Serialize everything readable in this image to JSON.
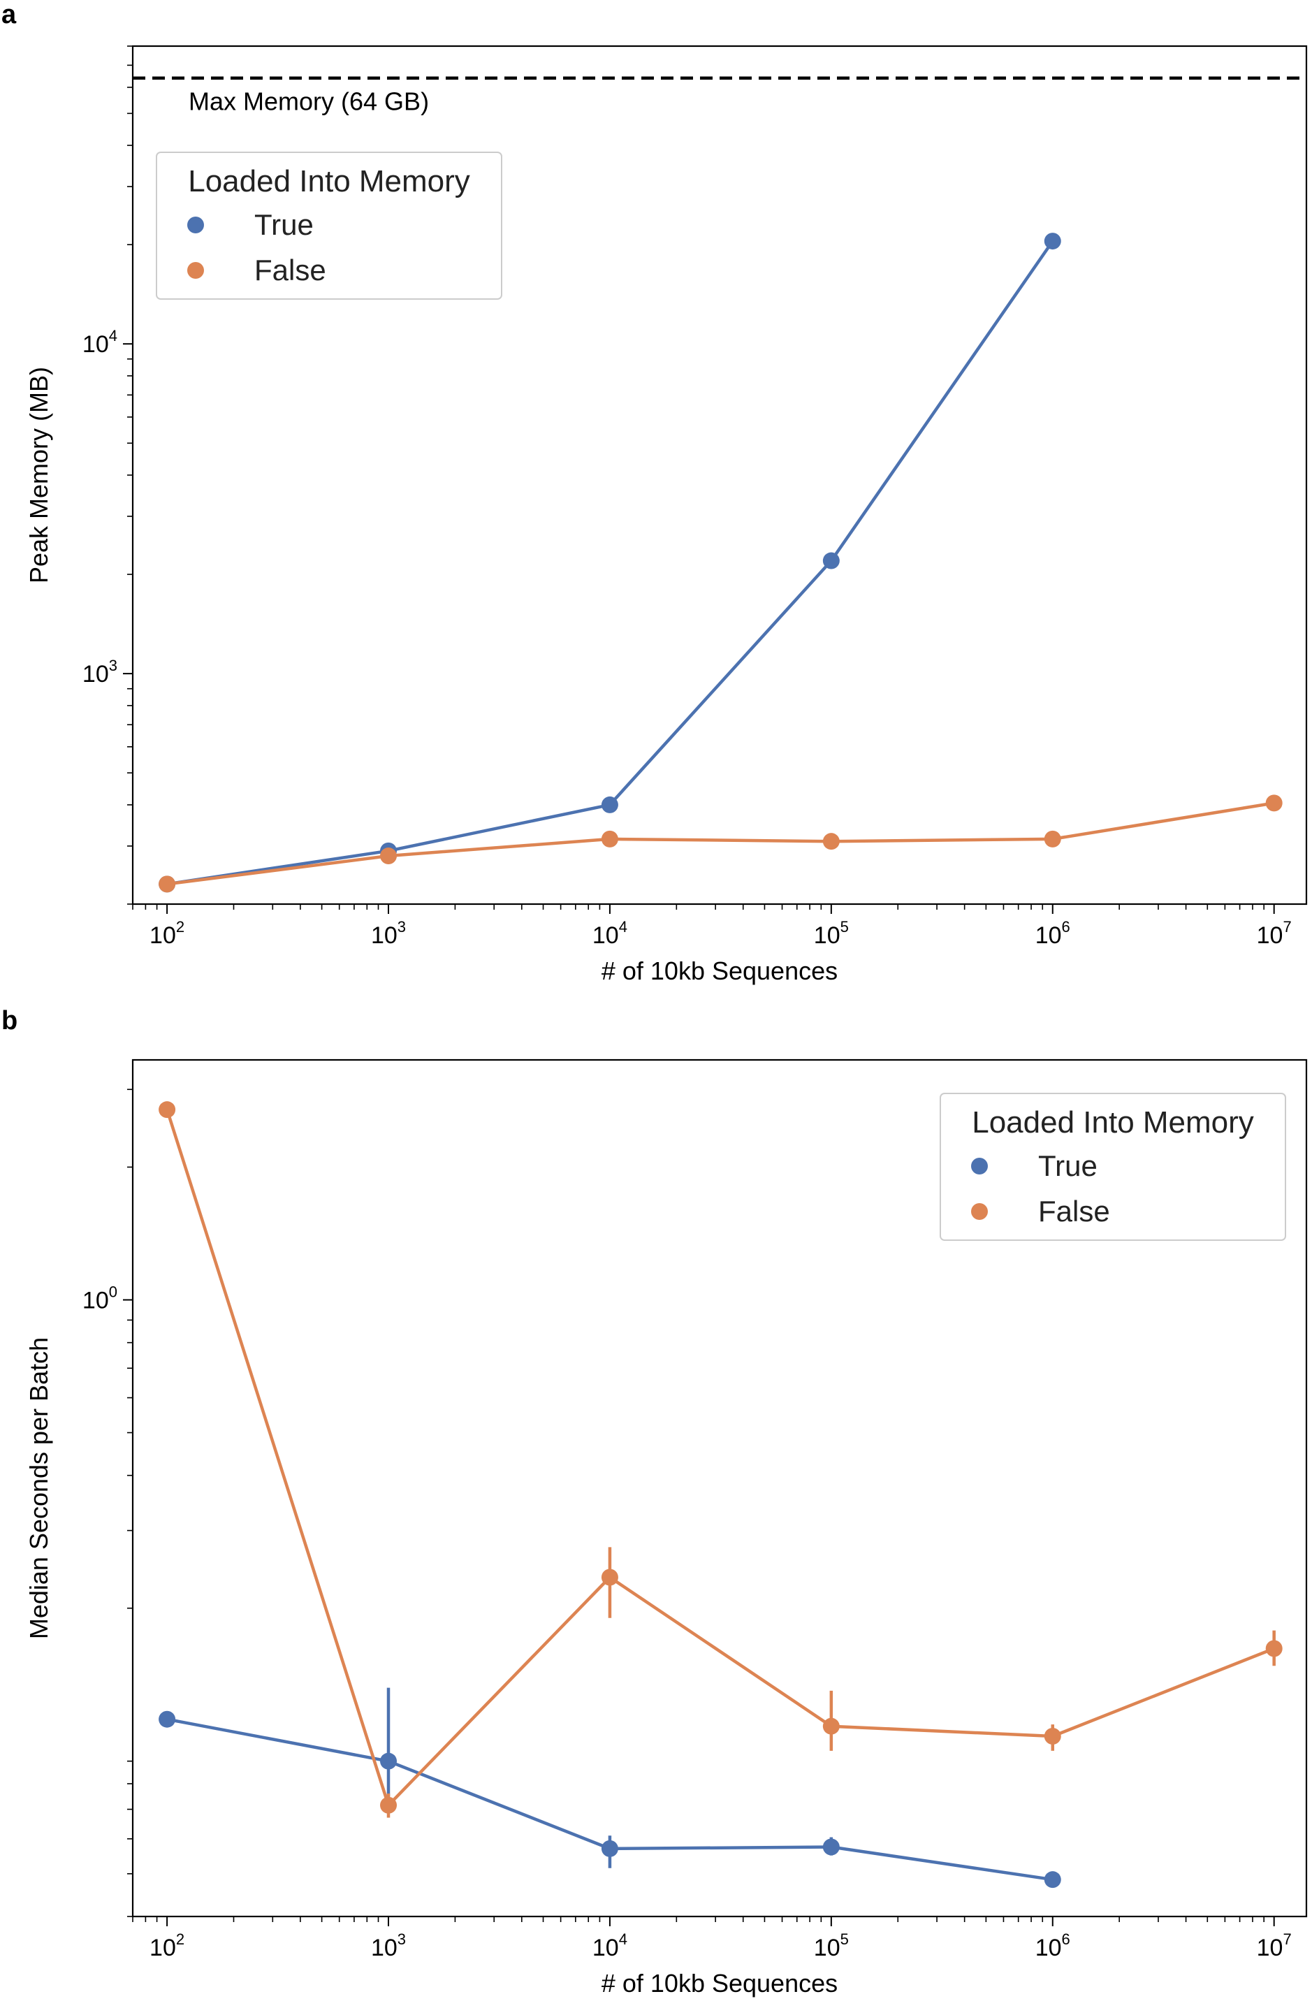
{
  "panels": {
    "a": "a",
    "b": "b"
  },
  "chart_data": [
    {
      "type": "line",
      "panel": "a",
      "xlabel": "# of 10kb Sequences",
      "ylabel": "Peak Memory (MB)",
      "xscale": "log",
      "yscale": "log",
      "xlim": [
        70,
        14000000
      ],
      "ylim": [
        200,
        80000
      ],
      "x_ticks": [
        100,
        1000,
        10000,
        100000,
        1000000,
        10000000
      ],
      "x_tick_labels": [
        [
          "10",
          "2"
        ],
        [
          "10",
          "3"
        ],
        [
          "10",
          "4"
        ],
        [
          "10",
          "5"
        ],
        [
          "10",
          "6"
        ],
        [
          "10",
          "7"
        ]
      ],
      "y_ticks": [
        1000,
        10000
      ],
      "y_tick_labels": [
        [
          "10",
          "3"
        ],
        [
          "10",
          "4"
        ]
      ],
      "legend": {
        "title": "Loaded Into Memory",
        "placement": "upper-left"
      },
      "reference_line": {
        "y": 64000,
        "style": "dashed",
        "label": "Max Memory (64 GB)"
      },
      "series": [
        {
          "name": "True",
          "color": "#4C72B0",
          "x": [
            100,
            1000,
            10000,
            100000,
            1000000
          ],
          "y": [
            230,
            290,
            400,
            2200,
            20500
          ]
        },
        {
          "name": "False",
          "color": "#DD8452",
          "x": [
            100,
            1000,
            10000,
            100000,
            1000000,
            10000000
          ],
          "y": [
            230,
            280,
            315,
            310,
            315,
            405
          ]
        }
      ]
    },
    {
      "type": "line",
      "panel": "b",
      "xlabel": "# of 10kb Sequences",
      "ylabel": "Median Seconds per Batch",
      "xscale": "log",
      "yscale": "log",
      "xlim": [
        70,
        14000000
      ],
      "ylim": [
        0.04,
        3.5
      ],
      "x_ticks": [
        100,
        1000,
        10000,
        100000,
        1000000,
        10000000
      ],
      "x_tick_labels": [
        [
          "10",
          "2"
        ],
        [
          "10",
          "3"
        ],
        [
          "10",
          "4"
        ],
        [
          "10",
          "5"
        ],
        [
          "10",
          "6"
        ],
        [
          "10",
          "7"
        ]
      ],
      "y_ticks": [
        1
      ],
      "y_tick_labels": [
        [
          "10",
          "0"
        ]
      ],
      "legend": {
        "title": "Loaded Into Memory",
        "placement": "upper-right"
      },
      "series": [
        {
          "name": "True",
          "color": "#4C72B0",
          "x": [
            100,
            1000,
            10000,
            100000,
            1000000
          ],
          "y": [
            0.112,
            0.09,
            0.057,
            0.0575,
            0.0485
          ],
          "err_low": [
            null,
            0.074,
            0.0515,
            0.055,
            0.0465
          ],
          "err_high": [
            null,
            0.132,
            0.061,
            0.0605,
            0.0505
          ]
        },
        {
          "name": "False",
          "color": "#DD8452",
          "x": [
            100,
            1000,
            10000,
            100000,
            1000000,
            10000000
          ],
          "y": [
            2.7,
            0.0715,
            0.235,
            0.108,
            0.1025,
            0.162
          ],
          "err_low": [
            null,
            0.067,
            0.19,
            0.095,
            0.095,
            0.148
          ],
          "err_high": [
            null,
            0.076,
            0.275,
            0.13,
            0.109,
            0.178
          ]
        }
      ]
    }
  ]
}
